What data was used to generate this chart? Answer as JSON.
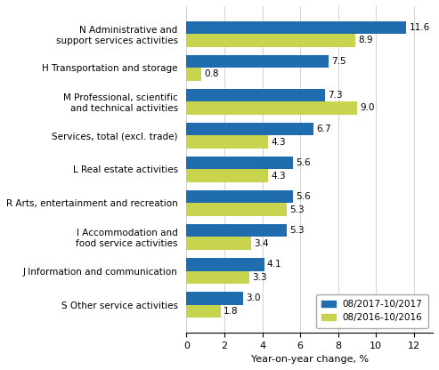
{
  "categories": [
    "N Administrative and\nsupport services activities",
    "H Transportation and storage",
    "M Professional, scientific\nand technical activities",
    "Services, total (excl. trade)",
    "L Real estate activities",
    "R Arts, entertainment and recreation",
    "I Accommodation and\nfood service activities",
    "J Information and communication",
    "S Other service activities"
  ],
  "values_2017": [
    11.6,
    7.5,
    7.3,
    6.7,
    5.6,
    5.6,
    5.3,
    4.1,
    3.0
  ],
  "values_2016": [
    8.9,
    0.8,
    9.0,
    4.3,
    4.3,
    5.3,
    3.4,
    3.3,
    1.8
  ],
  "color_2017": "#1F6DAE",
  "color_2016": "#C8D44E",
  "xlabel": "Year-on-year change, %",
  "legend_2017": "08/2017-10/2017",
  "legend_2016": "08/2016-10/2016",
  "xlim": [
    0,
    13
  ],
  "xticks": [
    0,
    2,
    4,
    6,
    8,
    10,
    12
  ],
  "bar_height": 0.38
}
